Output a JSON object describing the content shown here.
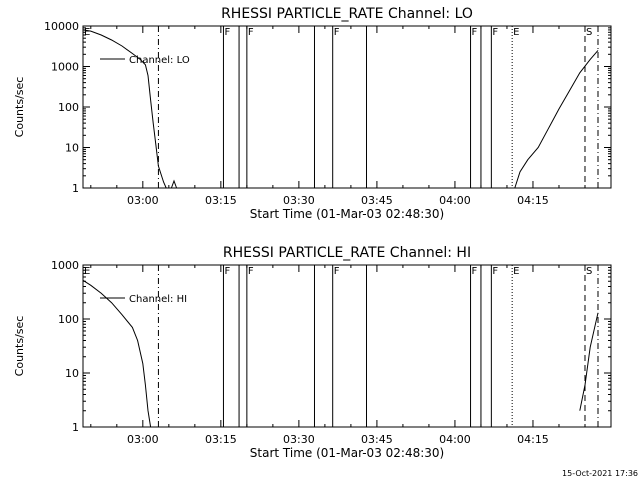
{
  "chart_data": [
    {
      "type": "line",
      "title": "RHESSI PARTICLE_RATE Channel: LO",
      "xlabel": "Start Time (01-Mar-03 02:48:30)",
      "ylabel": "Counts/sec",
      "yscale": "log",
      "ylim": [
        1,
        10000
      ],
      "xlim": [
        "02:48:30",
        "04:30:00"
      ],
      "x_ticks": [
        "03:00",
        "03:15",
        "03:30",
        "03:45",
        "04:00",
        "04:15"
      ],
      "y_ticks": [
        "1",
        "10",
        "100",
        "1000",
        "10000"
      ],
      "legend": "Channel: LO",
      "series": [
        {
          "name": "Channel: LO",
          "segments": [
            [
              [
                "02:48:30",
                8000
              ],
              [
                "02:50:00",
                7500
              ],
              [
                "02:52:00",
                6000
              ],
              [
                "02:54:00",
                4500
              ],
              [
                "02:56:00",
                3200
              ],
              [
                "02:58:00",
                2100
              ],
              [
                "02:59:30",
                1500
              ],
              [
                "03:00:30",
                1100
              ],
              [
                "03:01:00",
                600
              ],
              [
                "03:01:30",
                150
              ],
              [
                "03:02:00",
                40
              ],
              [
                "03:02:30",
                12
              ],
              [
                "03:03:00",
                3.5
              ],
              [
                "03:03:30",
                2.2
              ],
              [
                "03:04:00",
                1.4
              ],
              [
                "03:04:30",
                1.0
              ]
            ],
            [
              [
                "03:05:30",
                1.0
              ],
              [
                "03:06:00",
                1.5
              ],
              [
                "03:06:30",
                1.0
              ]
            ],
            [
              [
                "04:11:30",
                1.0
              ],
              [
                "04:12:30",
                2.5
              ],
              [
                "04:14:00",
                5
              ],
              [
                "04:16:00",
                10
              ],
              [
                "04:18:00",
                30
              ],
              [
                "04:20:00",
                90
              ],
              [
                "04:22:00",
                250
              ],
              [
                "04:24:00",
                700
              ],
              [
                "04:26:00",
                1500
              ],
              [
                "04:27:30",
                2500
              ]
            ]
          ]
        }
      ],
      "markers": [
        {
          "label": "E",
          "time": "02:48:30",
          "style": "solid"
        },
        {
          "label": "",
          "time": "03:03:00",
          "style": "dashdot"
        },
        {
          "label": "F",
          "time": "03:15:30",
          "style": "solid"
        },
        {
          "label": "",
          "time": "03:18:30",
          "style": "solid"
        },
        {
          "label": "F",
          "time": "03:20:00",
          "style": "solid"
        },
        {
          "label": "",
          "time": "03:33:00",
          "style": "solid"
        },
        {
          "label": "F",
          "time": "03:36:30",
          "style": "solid"
        },
        {
          "label": "",
          "time": "03:43:00",
          "style": "solid"
        },
        {
          "label": "F",
          "time": "04:03:00",
          "style": "solid"
        },
        {
          "label": "",
          "time": "04:05:00",
          "style": "solid"
        },
        {
          "label": "F",
          "time": "04:07:00",
          "style": "solid"
        },
        {
          "label": "E",
          "time": "04:11:00",
          "style": "dotted"
        },
        {
          "label": "S",
          "time": "04:25:00",
          "style": "dashed"
        },
        {
          "label": "",
          "time": "04:27:30",
          "style": "dashdot"
        }
      ]
    },
    {
      "type": "line",
      "title": "RHESSI PARTICLE_RATE Channel: HI",
      "xlabel": "Start Time (01-Mar-03 02:48:30)",
      "ylabel": "Counts/sec",
      "yscale": "log",
      "ylim": [
        1,
        1000
      ],
      "xlim": [
        "02:48:30",
        "04:30:00"
      ],
      "x_ticks": [
        "03:00",
        "03:15",
        "03:30",
        "03:45",
        "04:00",
        "04:15"
      ],
      "y_ticks": [
        "1",
        "10",
        "100",
        "1000"
      ],
      "legend": "Channel: HI",
      "series": [
        {
          "name": "Channel: HI",
          "segments": [
            [
              [
                "02:48:30",
                520
              ],
              [
                "02:50:00",
                420
              ],
              [
                "02:52:00",
                300
              ],
              [
                "02:54:00",
                200
              ],
              [
                "02:56:00",
                120
              ],
              [
                "02:58:00",
                70
              ],
              [
                "02:59:00",
                40
              ],
              [
                "03:00:00",
                15
              ],
              [
                "03:00:30",
                6
              ],
              [
                "03:01:00",
                2
              ],
              [
                "03:01:30",
                1.0
              ]
            ],
            [
              [
                "04:24:00",
                2.0
              ],
              [
                "04:25:00",
                6
              ],
              [
                "04:26:00",
                30
              ],
              [
                "04:27:00",
                80
              ],
              [
                "04:27:30",
                130
              ]
            ]
          ]
        }
      ],
      "markers": [
        {
          "label": "E",
          "time": "02:48:30",
          "style": "solid"
        },
        {
          "label": "",
          "time": "03:03:00",
          "style": "dashdot"
        },
        {
          "label": "F",
          "time": "03:15:30",
          "style": "solid"
        },
        {
          "label": "",
          "time": "03:18:30",
          "style": "solid"
        },
        {
          "label": "F",
          "time": "03:20:00",
          "style": "solid"
        },
        {
          "label": "",
          "time": "03:33:00",
          "style": "solid"
        },
        {
          "label": "F",
          "time": "03:36:30",
          "style": "solid"
        },
        {
          "label": "",
          "time": "03:43:00",
          "style": "solid"
        },
        {
          "label": "F",
          "time": "04:03:00",
          "style": "solid"
        },
        {
          "label": "",
          "time": "04:05:00",
          "style": "solid"
        },
        {
          "label": "F",
          "time": "04:07:00",
          "style": "solid"
        },
        {
          "label": "E",
          "time": "04:11:00",
          "style": "dotted"
        },
        {
          "label": "S",
          "time": "04:25:00",
          "style": "dashed"
        },
        {
          "label": "",
          "time": "04:27:30",
          "style": "dashdot"
        }
      ]
    }
  ],
  "footer": {
    "timestamp": "15-Oct-2021 17:36"
  }
}
